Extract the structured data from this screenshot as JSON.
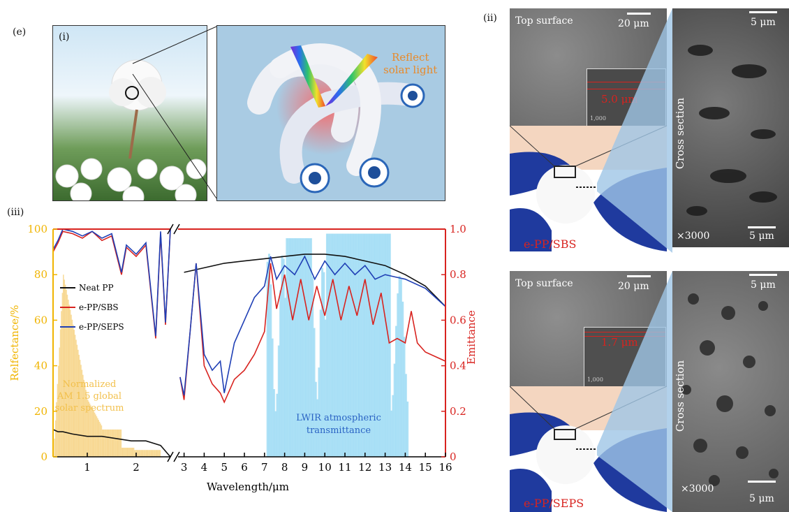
{
  "panel_labels": {
    "e": "(e)",
    "i": "(i)",
    "ii": "(ii)",
    "iii": "(iii)"
  },
  "illustration": {
    "reflect_line1": "Reflect",
    "reflect_line2": "solar light"
  },
  "sem_top": {
    "top_surface": "Top surface",
    "scale_20": "20 μm",
    "scale_5": "5 μm",
    "thickness": "5.0 μm",
    "inset_mag": "1,000",
    "cross_section": "Cross section",
    "mag": "×3000",
    "scale_5b": "5 μm",
    "sample": "e-PP/SBS"
  },
  "sem_bottom": {
    "top_surface": "Top surface",
    "scale_20": "20 μm",
    "scale_5": "5 μm",
    "thickness": "1.7 μm",
    "inset_mag": "1,000",
    "cross_section": "Cross section",
    "mag": "×3000",
    "scale_5b": "5 μm",
    "sample": "e-PP/SEPS"
  },
  "chart_data": {
    "type": "line",
    "xlabel": "Wavelength/μm",
    "ylabel_left": "Relfectance/%",
    "ylabel_right": "Emittance",
    "ylim_left": [
      0,
      100
    ],
    "ylim_right": [
      0,
      1.0
    ],
    "x_ticks_left": [
      "1",
      "2"
    ],
    "x_ticks_right": [
      "3",
      "4",
      "5",
      "6",
      "7",
      "8",
      "9",
      "10",
      "11",
      "12",
      "13",
      "14",
      "15",
      "16"
    ],
    "y_ticks_left": [
      "0",
      "20",
      "40",
      "60",
      "80",
      "100"
    ],
    "y_ticks_right": [
      "0",
      "0.2",
      "0.4",
      "0.6",
      "0.8",
      "1.0"
    ],
    "axis_break": true,
    "legend": [
      "Neat PP",
      "e-PP/SBS",
      "e-PP/SEPS"
    ],
    "colors": {
      "neat": "#111111",
      "sbs": "#d8231f",
      "seps": "#1f3fb5",
      "solar": "#f2c04c",
      "lwir": "#9fdcf5",
      "left_axis": "#f0b400",
      "right_axis": "#d8231f"
    },
    "annotation_solar": [
      "Normalized",
      "AM 1.5 global",
      "solar spectrum"
    ],
    "annotation_lwir": [
      "LWIR atmospheric",
      "transmittance"
    ],
    "series": [
      {
        "name": "Neat PP",
        "x": [
          0.3,
          0.4,
          0.5,
          0.7,
          1.0,
          1.3,
          1.6,
          1.9,
          2.2,
          2.5,
          2.7
        ],
        "y": [
          12,
          11,
          11,
          10,
          9,
          9,
          8,
          7,
          7,
          5,
          0
        ],
        "axis": "left"
      },
      {
        "name": "e-PP/SBS",
        "x": [
          0.3,
          0.4,
          0.5,
          0.7,
          0.9,
          1.1,
          1.3,
          1.5,
          1.7,
          1.8,
          2.0,
          2.2,
          2.4,
          2.5,
          2.6,
          2.7
        ],
        "y": [
          90,
          94,
          99,
          98,
          96,
          99,
          95,
          97,
          80,
          92,
          88,
          93,
          52,
          98,
          58,
          100
        ],
        "axis": "left"
      },
      {
        "name": "e-PP/SEPS",
        "x": [
          0.3,
          0.4,
          0.5,
          0.7,
          0.9,
          1.1,
          1.3,
          1.5,
          1.7,
          1.8,
          2.0,
          2.2,
          2.4,
          2.5,
          2.6,
          2.7
        ],
        "y": [
          91,
          95,
          100,
          99,
          97,
          99,
          96,
          98,
          81,
          93,
          89,
          94,
          53,
          99,
          59,
          100
        ],
        "axis": "left"
      },
      {
        "name": "Neat PP",
        "x": [
          3,
          4,
          5,
          6,
          7,
          8,
          9,
          10,
          11,
          12,
          13,
          14,
          15,
          16
        ],
        "y": [
          0.81,
          0.83,
          0.85,
          0.86,
          0.87,
          0.88,
          0.89,
          0.89,
          0.88,
          0.86,
          0.84,
          0.8,
          0.75,
          0.66
        ],
        "axis": "right"
      },
      {
        "name": "e-PP/SBS",
        "x": [
          2.8,
          3.0,
          3.3,
          3.6,
          4.0,
          4.4,
          4.8,
          5.0,
          5.5,
          6.0,
          6.5,
          7.0,
          7.3,
          7.6,
          8.0,
          8.4,
          8.8,
          9.2,
          9.6,
          10.0,
          10.4,
          10.8,
          11.2,
          11.6,
          12.0,
          12.4,
          12.8,
          13.2,
          13.6,
          14.0,
          14.3,
          14.6,
          15.0,
          16.0
        ],
        "y": [
          0.35,
          0.25,
          0.55,
          0.85,
          0.4,
          0.32,
          0.28,
          0.24,
          0.34,
          0.38,
          0.45,
          0.55,
          0.85,
          0.65,
          0.8,
          0.6,
          0.78,
          0.6,
          0.75,
          0.62,
          0.78,
          0.6,
          0.75,
          0.62,
          0.78,
          0.58,
          0.72,
          0.5,
          0.52,
          0.5,
          0.64,
          0.5,
          0.46,
          0.42
        ],
        "axis": "right"
      },
      {
        "name": "e-PP/SEPS",
        "x": [
          2.8,
          3.0,
          3.3,
          3.6,
          4.0,
          4.4,
          4.8,
          5.0,
          5.5,
          6.0,
          6.5,
          7.0,
          7.3,
          7.6,
          8.0,
          8.5,
          9.0,
          9.5,
          10.0,
          10.5,
          11.0,
          11.5,
          12.0,
          12.5,
          13.0,
          13.5,
          14.0,
          15.0,
          16.0
        ],
        "y": [
          0.35,
          0.27,
          0.55,
          0.85,
          0.45,
          0.38,
          0.42,
          0.28,
          0.5,
          0.6,
          0.7,
          0.75,
          0.88,
          0.78,
          0.84,
          0.8,
          0.88,
          0.78,
          0.86,
          0.8,
          0.85,
          0.8,
          0.84,
          0.78,
          0.8,
          0.79,
          0.78,
          0.74,
          0.66
        ],
        "axis": "right"
      }
    ]
  }
}
